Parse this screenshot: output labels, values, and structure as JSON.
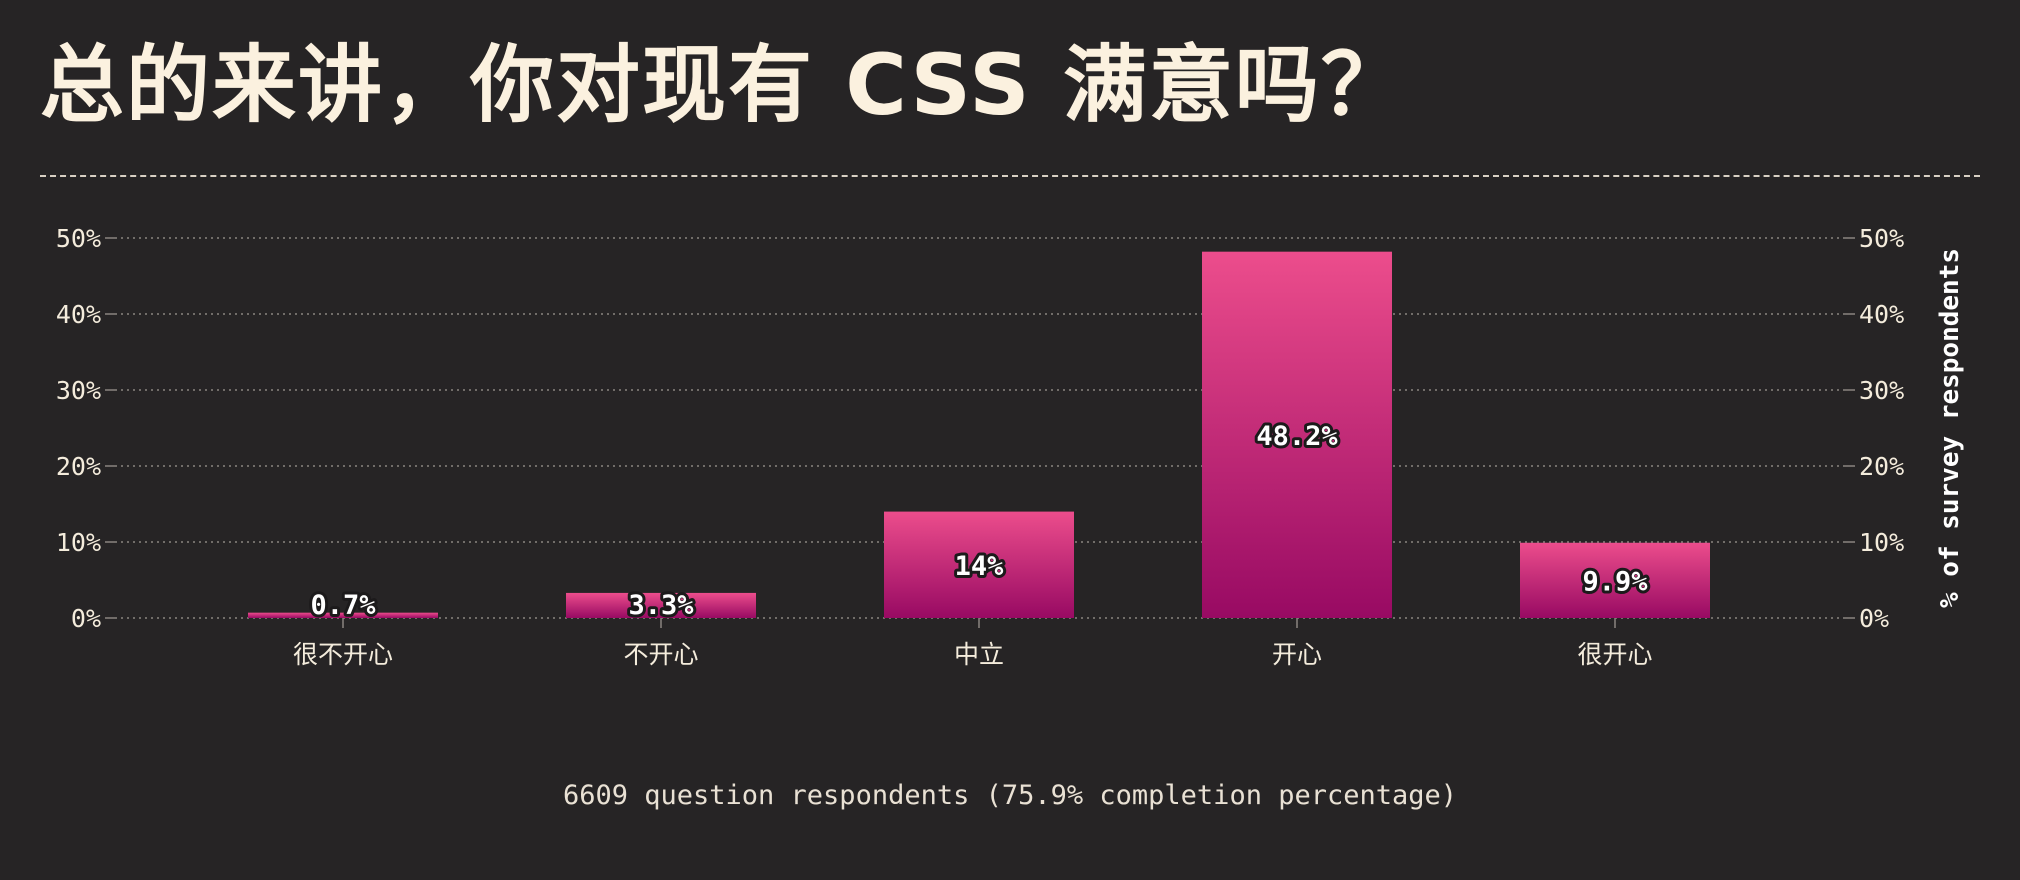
{
  "page": {
    "title": "总的来讲，你对现有 CSS 满意吗？",
    "footer": "6609 question respondents (75.9% completion percentage)"
  },
  "colors": {
    "background": "#262425",
    "text": "#f4ecdc",
    "bar_top": "#ec4d8c",
    "bar_bottom": "#980a63",
    "grid": "#8a8580"
  },
  "chart_data": {
    "type": "bar",
    "title": "总的来讲，你对现有 CSS 满意吗？",
    "categories": [
      "很不开心",
      "不开心",
      "中立",
      "开心",
      "很开心"
    ],
    "values": [
      0.7,
      3.3,
      14,
      48.2,
      9.9
    ],
    "value_labels": [
      "0.7%",
      "3.3%",
      "14%",
      "48.2%",
      "9.9%"
    ],
    "xlabel": "",
    "ylabel": "% of survey respondents",
    "ylim": [
      0,
      50
    ],
    "yticks": [
      0,
      10,
      20,
      30,
      40,
      50
    ],
    "ytick_labels": [
      "0%",
      "10%",
      "20%",
      "30%",
      "40%",
      "50%"
    ],
    "grid": true,
    "legend": "none"
  }
}
